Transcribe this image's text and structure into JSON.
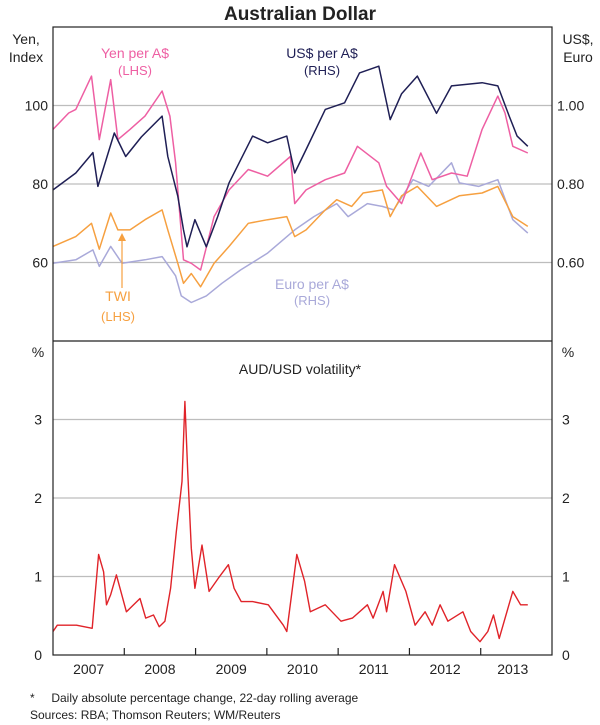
{
  "title": "Australian Dollar",
  "colors": {
    "yen": "#ee5fa3",
    "usd": "#1f1f55",
    "twi": "#f6a040",
    "euro": "#a9a9d9",
    "vol": "#e02329",
    "grid": "#bdbdbd"
  },
  "chart_data": [
    {
      "type": "line",
      "panel": "top",
      "left_axis_label": [
        "Yen,",
        "Index"
      ],
      "right_axis_label": [
        "US$,",
        "Euro"
      ],
      "ylim": [
        40,
        120
      ],
      "ylim_right": [
        0.4,
        1.2
      ],
      "left_ticks": [
        "100",
        "80",
        "60"
      ],
      "left_tick_values": [
        100,
        80,
        60
      ],
      "right_ticks": [
        "1.00",
        "0.80",
        "0.60"
      ],
      "xlim": [
        2007,
        2014
      ],
      "grid": true,
      "series": [
        {
          "name": "Yen per A$",
          "axis": "LHS",
          "label": "Yen per A$",
          "sublabel": "(LHS)",
          "color_key": "yen",
          "x": [
            2007.0,
            2007.22,
            2007.32,
            2007.54,
            2007.65,
            2007.81,
            2007.91,
            2008.08,
            2008.29,
            2008.53,
            2008.64,
            2008.72,
            2008.83,
            2008.94,
            2009.07,
            2009.26,
            2009.47,
            2009.74,
            2010.01,
            2010.33,
            2010.39,
            2010.55,
            2010.82,
            2011.09,
            2011.27,
            2011.57,
            2011.68,
            2011.89,
            2012.16,
            2012.32,
            2012.59,
            2012.81,
            2013.02,
            2013.24,
            2013.34,
            2013.45,
            2013.66
          ],
          "y": [
            93.9,
            98.1,
            99.0,
            107.5,
            91.3,
            106.6,
            91.3,
            93.9,
            97.3,
            103.7,
            97.3,
            85.4,
            60.7,
            59.8,
            58.1,
            71.7,
            78.5,
            83.7,
            82.0,
            87.0,
            75.0,
            78.5,
            81.1,
            82.8,
            89.6,
            85.4,
            79.4,
            75.0,
            87.9,
            81.1,
            82.8,
            82.0,
            93.9,
            102.4,
            98.1,
            89.6,
            87.9
          ]
        },
        {
          "name": "US$ per A$",
          "axis": "RHS",
          "label": "US$ per A$",
          "sublabel": "(RHS)",
          "color_key": "usd",
          "x": [
            2007.0,
            2007.32,
            2007.56,
            2007.63,
            2007.86,
            2008.02,
            2008.24,
            2008.53,
            2008.61,
            2008.75,
            2008.83,
            2008.88,
            2008.99,
            2009.15,
            2009.31,
            2009.47,
            2009.8,
            2010.01,
            2010.28,
            2010.39,
            2010.55,
            2010.82,
            2011.09,
            2011.3,
            2011.57,
            2011.73,
            2011.89,
            2012.11,
            2012.38,
            2012.59,
            2013.02,
            2013.24,
            2013.4,
            2013.51,
            2013.66
          ],
          "y": [
            0.785,
            0.828,
            0.88,
            0.794,
            0.93,
            0.87,
            0.92,
            0.973,
            0.87,
            0.769,
            0.683,
            0.64,
            0.709,
            0.64,
            0.717,
            0.803,
            0.922,
            0.905,
            0.922,
            0.828,
            0.888,
            0.99,
            1.007,
            1.083,
            1.1,
            0.964,
            1.03,
            1.075,
            0.98,
            1.05,
            1.058,
            1.05,
            0.973,
            0.922,
            0.896
          ]
        },
        {
          "name": "TWI",
          "axis": "LHS",
          "label": "TWI",
          "sublabel": "(LHS)",
          "color_key": "twi",
          "x": [
            2007.0,
            2007.32,
            2007.54,
            2007.65,
            2007.81,
            2007.91,
            2008.08,
            2008.29,
            2008.53,
            2008.61,
            2008.75,
            2008.83,
            2008.94,
            2009.07,
            2009.26,
            2009.47,
            2009.74,
            2010.01,
            2010.28,
            2010.39,
            2010.55,
            2010.82,
            2010.98,
            2011.19,
            2011.35,
            2011.62,
            2011.73,
            2011.89,
            2012.11,
            2012.38,
            2012.7,
            2013.02,
            2013.24,
            2013.45,
            2013.66
          ],
          "y": [
            64.1,
            66.6,
            70.0,
            63.4,
            72.6,
            68.3,
            68.3,
            70.9,
            73.4,
            68.3,
            59.8,
            54.7,
            57.2,
            53.8,
            59.8,
            64.1,
            70.0,
            70.9,
            71.7,
            66.6,
            68.3,
            73.4,
            76.0,
            74.3,
            77.7,
            78.5,
            71.7,
            77.0,
            79.4,
            74.3,
            77.0,
            77.7,
            79.4,
            71.7,
            69.2
          ]
        },
        {
          "name": "Euro per A$",
          "axis": "RHS",
          "label": "Euro per A$",
          "sublabel": "(RHS)",
          "color_key": "euro",
          "x": [
            2007.0,
            2007.32,
            2007.56,
            2007.65,
            2007.81,
            2007.97,
            2008.29,
            2008.53,
            2008.72,
            2008.8,
            2008.94,
            2009.15,
            2009.37,
            2009.63,
            2010.01,
            2010.39,
            2010.66,
            2010.98,
            2011.14,
            2011.41,
            2011.62,
            2011.78,
            2012.05,
            2012.27,
            2012.59,
            2012.7,
            2012.97,
            2013.24,
            2013.45,
            2013.66
          ],
          "y": [
            0.598,
            0.607,
            0.632,
            0.59,
            0.641,
            0.598,
            0.607,
            0.615,
            0.566,
            0.515,
            0.498,
            0.515,
            0.547,
            0.581,
            0.624,
            0.683,
            0.717,
            0.75,
            0.717,
            0.75,
            0.743,
            0.734,
            0.811,
            0.794,
            0.854,
            0.803,
            0.794,
            0.811,
            0.709,
            0.675
          ]
        }
      ]
    },
    {
      "type": "line",
      "panel": "bottom",
      "title": "AUD/USD volatility*",
      "left_axis_label": "%",
      "right_axis_label": "%",
      "ylim": [
        0,
        4
      ],
      "yticks": [
        "3",
        "2",
        "1",
        "0"
      ],
      "ytick_values": [
        3,
        2,
        1,
        0
      ],
      "xlim": [
        2007,
        2014
      ],
      "xticks": [
        "2007",
        "2008",
        "2009",
        "2010",
        "2011",
        "2012",
        "2013"
      ],
      "grid": true,
      "series": [
        {
          "name": "AUD/USD volatility",
          "color_key": "vol",
          "x": [
            2007.0,
            2007.06,
            2007.33,
            2007.55,
            2007.57,
            2007.64,
            2007.71,
            2007.75,
            2007.81,
            2007.89,
            2008.03,
            2008.13,
            2008.22,
            2008.3,
            2008.41,
            2008.49,
            2008.57,
            2008.65,
            2008.73,
            2008.81,
            2008.85,
            2008.89,
            2008.94,
            2008.99,
            2009.09,
            2009.19,
            2009.32,
            2009.46,
            2009.54,
            2009.64,
            2009.8,
            2010.02,
            2010.23,
            2010.28,
            2010.42,
            2010.53,
            2010.61,
            2010.82,
            2011.04,
            2011.2,
            2011.41,
            2011.49,
            2011.63,
            2011.68,
            2011.79,
            2011.95,
            2012.08,
            2012.22,
            2012.32,
            2012.43,
            2012.54,
            2012.75,
            2012.86,
            2012.99,
            2013.1,
            2013.18,
            2013.26,
            2013.45,
            2013.56,
            2013.66
          ],
          "y": [
            0.3,
            0.38,
            0.38,
            0.34,
            0.55,
            1.28,
            1.06,
            0.64,
            0.77,
            1.02,
            0.55,
            0.64,
            0.72,
            0.47,
            0.51,
            0.36,
            0.43,
            0.85,
            1.57,
            2.21,
            3.23,
            2.34,
            1.36,
            0.85,
            1.4,
            0.81,
            0.98,
            1.15,
            0.85,
            0.68,
            0.68,
            0.64,
            0.38,
            0.3,
            1.28,
            0.94,
            0.55,
            0.64,
            0.43,
            0.47,
            0.64,
            0.47,
            0.81,
            0.55,
            1.15,
            0.81,
            0.38,
            0.55,
            0.38,
            0.64,
            0.43,
            0.55,
            0.3,
            0.17,
            0.3,
            0.51,
            0.21,
            0.81,
            0.64,
            0.64
          ]
        }
      ]
    }
  ],
  "footnotes": {
    "note": "*     Daily absolute percentage change, 22-day rolling average",
    "sources": "Sources: RBA; Thomson Reuters; WM/Reuters"
  }
}
